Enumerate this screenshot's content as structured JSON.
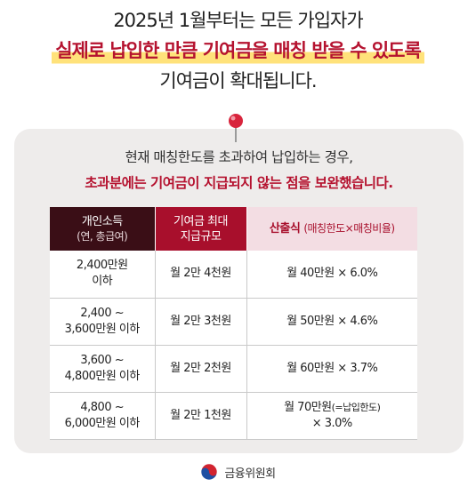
{
  "headline": {
    "line1": "2025년 1월부터는 모든 가입자가",
    "line2": "실제로 납입한 만큼 기여금을 매칭 받을 수 있도록",
    "line3": "기여금이 확대됩니다."
  },
  "card": {
    "line1": "현재 매칭한도를 초과하여 납입하는 경우,",
    "line2_red": "초과분에는 기여금이 지급되지 않는 점을 보완했습니다."
  },
  "table": {
    "headers": {
      "col1_line1": "개인소득",
      "col1_line2": "(연, 총급여)",
      "col2_line1": "기여금 최대",
      "col2_line2": "지급규모",
      "col3_main": "산출식",
      "col3_sub": "(매칭한도×매칭비율)"
    },
    "rows": [
      {
        "income_line1": "2,400만원",
        "income_line2": "이하",
        "max": "월 2만 4천원",
        "formula": "월 40만원 × 6.0%"
      },
      {
        "income_line1": "2,400 ~",
        "income_line2": "3,600만원 이하",
        "max": "월 2만 3천원",
        "formula": "월 50만원 × 4.6%"
      },
      {
        "income_line1": "3,600 ~",
        "income_line2": "4,800만원 이하",
        "max": "월 2만 2천원",
        "formula": "월 60만원 × 3.7%"
      },
      {
        "income_line1": "4,800 ~",
        "income_line2": "6,000만원 이하",
        "max": "월 2만 1천원",
        "formula_line1": "월 70만원",
        "formula_note": "(=납입한도)",
        "formula_line2": "× 3.0%"
      }
    ]
  },
  "footer": {
    "org_name": "금융위원회",
    "logo_icon": "taegeuk-emblem-icon"
  },
  "colors": {
    "accent_red": "#b5122f",
    "highlight_yellow": "#ffe27a",
    "header_dark": "#3a0e16",
    "header_pink": "#f3dde3",
    "card_bg": "#eeeceb"
  }
}
